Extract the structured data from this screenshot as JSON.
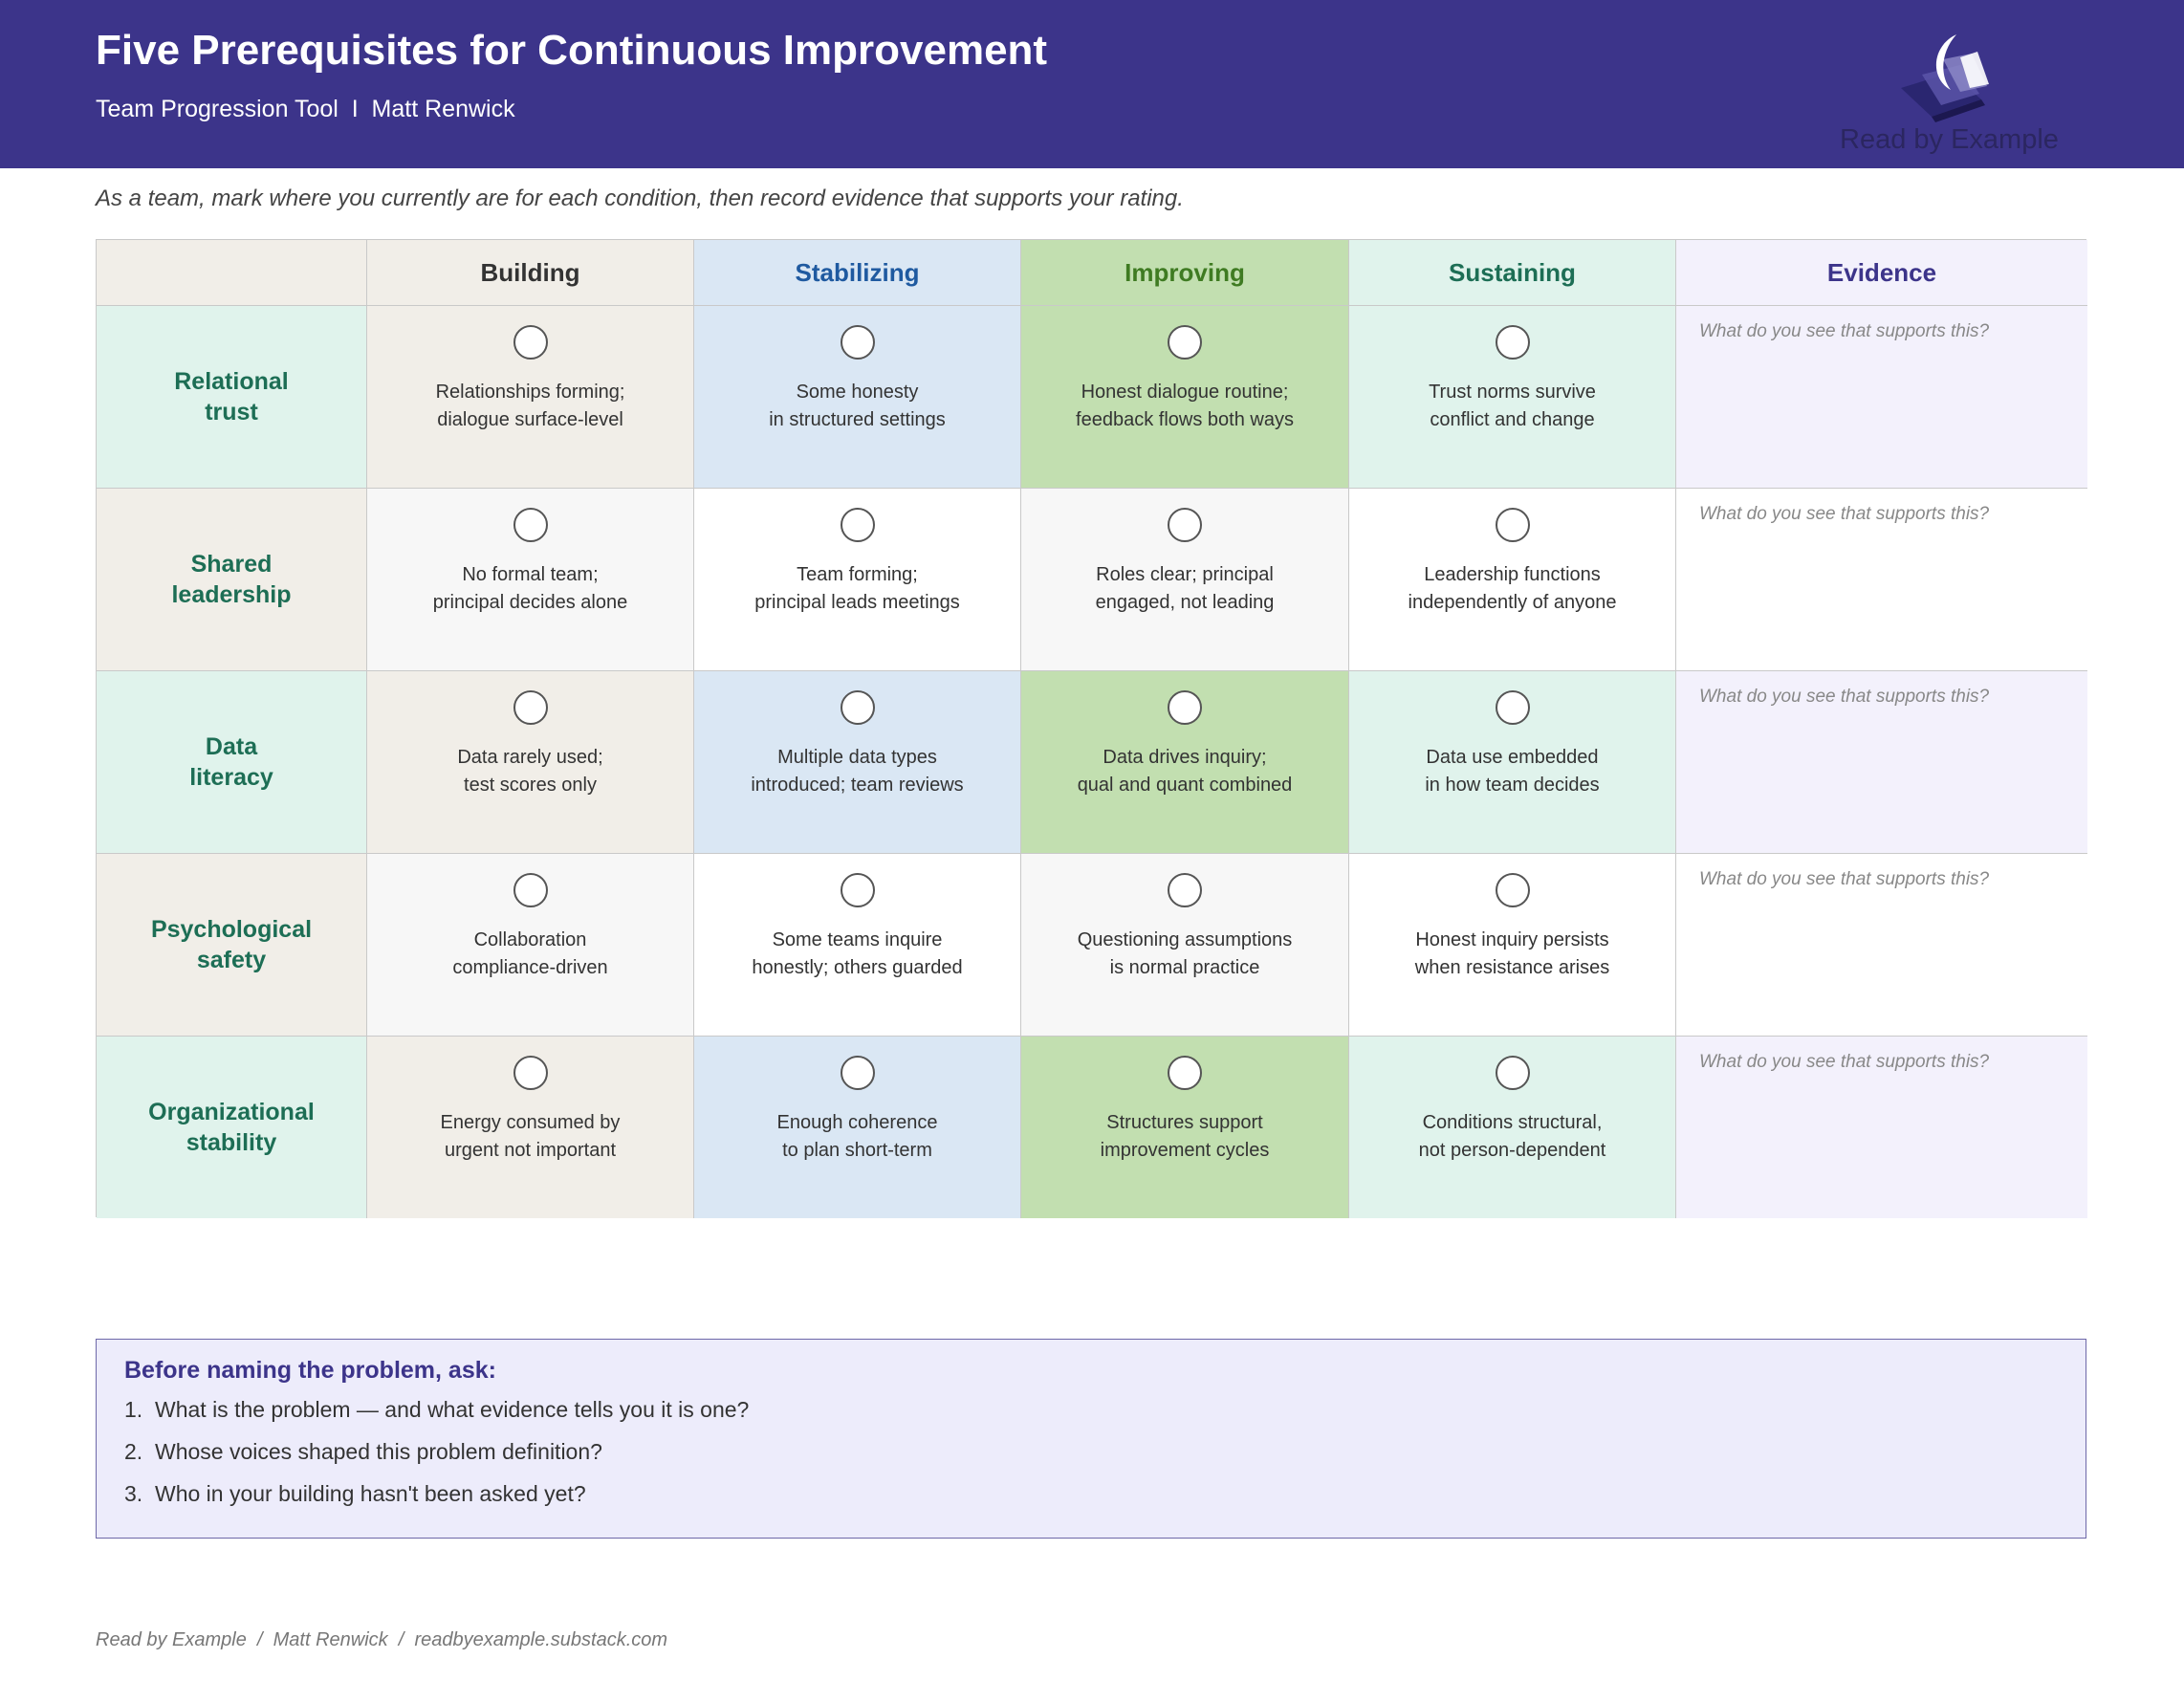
{
  "header": {
    "title": "Five Prerequisites for Continuous Improvement",
    "subtitle": "Team Progression Tool  I  Matt Renwick",
    "logo_text": "Read by Example",
    "background_color": "#3c348a"
  },
  "instruction": "As a team, mark where you currently are for each condition, then record evidence that supports your rating.",
  "columns": [
    {
      "label": "Building",
      "color": "#333333",
      "header_bg": "#f1eee8"
    },
    {
      "label": "Stabilizing",
      "color": "#1f5aa0",
      "header_bg": "#dae7f4"
    },
    {
      "label": "Improving",
      "color": "#3f7b22",
      "header_bg": "#c2dfb0"
    },
    {
      "label": "Sustaining",
      "color": "#1d6e55",
      "header_bg": "#e0f3ec"
    },
    {
      "label": "Evidence",
      "color": "#3c348a",
      "header_bg": "#f3f1fc"
    }
  ],
  "rows": [
    {
      "label": "Relational\ntrust",
      "label_lines": [
        "Relational",
        "trust"
      ],
      "levels": [
        "Relationships forming;\ndialogue surface-level",
        "Some honesty\nin structured settings",
        "Honest dialogue routine;\nfeedback flows both ways",
        "Trust norms survive\nconflict and change"
      ],
      "evidence_prompt": "What do you see that supports this?",
      "tinted": true
    },
    {
      "label": "Shared\nleadership",
      "label_lines": [
        "Shared",
        "leadership"
      ],
      "levels": [
        "No formal team;\nprincipal decides alone",
        "Team forming;\nprincipal leads meetings",
        "Roles clear; principal\nengaged, not leading",
        "Leadership functions\nindependently of anyone"
      ],
      "evidence_prompt": "What do you see that supports this?",
      "tinted": false
    },
    {
      "label": "Data\nliteracy",
      "label_lines": [
        "Data",
        "literacy"
      ],
      "levels": [
        "Data rarely used;\ntest scores only",
        "Multiple data types\nintroduced; team reviews",
        "Data drives inquiry;\nqual and quant combined",
        "Data use embedded\nin how team decides"
      ],
      "evidence_prompt": "What do you see that supports this?",
      "tinted": true
    },
    {
      "label": "Psychological\nsafety",
      "label_lines": [
        "Psychological",
        "safety"
      ],
      "levels": [
        "Collaboration\ncompliance-driven",
        "Some teams inquire\nhonestly; others guarded",
        "Questioning assumptions\nis normal practice",
        "Honest inquiry persists\nwhen resistance arises"
      ],
      "evidence_prompt": "What do you see that supports this?",
      "tinted": false
    },
    {
      "label": "Organizational\nstability",
      "label_lines": [
        "Organizational",
        "stability"
      ],
      "levels": [
        "Energy consumed by\nurgent not important",
        "Enough coherence\nto plan short-term",
        "Structures support\nimprovement cycles",
        "Conditions structural,\nnot person-dependent"
      ],
      "evidence_prompt": "What do you see that supports this?",
      "tinted": true
    }
  ],
  "row_head_colors": {
    "tinted": "#e0f3ec",
    "plain": "#f1eee8"
  },
  "tinted_colors": [
    "#f1eee8",
    "#dae7f4",
    "#c2dfb0",
    "#e0f3ec",
    "#f3f1fc"
  ],
  "plain_colors": [
    "#f7f7f7",
    "#ffffff",
    "#f7f7f7",
    "#ffffff",
    "#ffffff"
  ],
  "questions": {
    "title": "Before naming the problem, ask:",
    "items": [
      {
        "num": "1.",
        "text": "What is the problem — and what evidence tells you it is one?"
      },
      {
        "num": "2.",
        "text": "Whose voices shaped this problem definition?"
      },
      {
        "num": "3.",
        "text": "Who in your building hasn't been asked yet?"
      }
    ]
  },
  "footer": "Read by Example  /  Matt Renwick  /  readbyexample.substack.com"
}
